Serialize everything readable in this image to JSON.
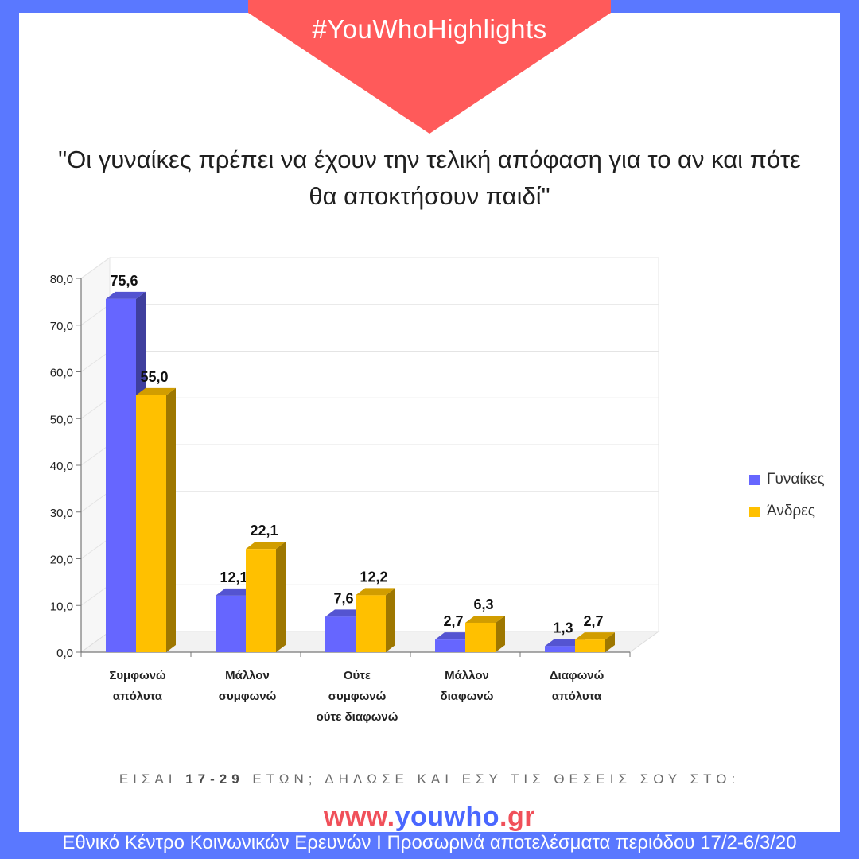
{
  "hashtag": "#YouWhoHighlights",
  "quote": "\"Οι γυναίκες πρέπει να έχουν την τελική απόφαση για το αν και πότε θα αποκτήσουν παιδί\"",
  "cta": {
    "part1": "ΕΙΣΑΙ ",
    "age": "17-29",
    "part2": " ΕΤΩΝ; ΔΗΛΩΣΕ ΚΑΙ ΕΣΥ ΤΙΣ ΘΕΣΕΙΣ ΣΟΥ ΣΤΟ:"
  },
  "site": {
    "prefix": "www.",
    "brand": "youwho",
    "suffix": ".gr"
  },
  "footer": "Εθνικό Κέντρο Κοινωνικών Ερευνών Ι Προσωρινά αποτελέσματα περιόδου 17/2-6/3/20",
  "colors": {
    "page_border": "#5a78ff",
    "banner": "#ff5a5a",
    "women": "#6666ff",
    "men": "#ffc000",
    "brand_red": "#f0505a",
    "brand_blue": "#4a67ff"
  },
  "chart_data": {
    "type": "bar",
    "style": "3d",
    "categories": [
      [
        "Συμφωνώ",
        "απόλυτα"
      ],
      [
        "Μάλλον",
        "συμφωνώ"
      ],
      [
        "Ούτε",
        "συμφωνώ",
        "ούτε διαφωνώ"
      ],
      [
        "Μάλλον",
        "διαφωνώ"
      ],
      [
        "Διαφωνώ",
        "απόλυτα"
      ]
    ],
    "series": [
      {
        "name": "Γυναίκες",
        "color": "#6666ff",
        "values": [
          75.6,
          12.1,
          7.6,
          2.7,
          1.3
        ],
        "labels": [
          "75,6",
          "12,1",
          "7,6",
          "2,7",
          "1,3"
        ]
      },
      {
        "name": "Άνδρες",
        "color": "#ffc000",
        "values": [
          55.0,
          22.1,
          12.2,
          6.3,
          2.7
        ],
        "labels": [
          "55,0",
          "22,1",
          "12,2",
          "6,3",
          "2,7"
        ]
      }
    ],
    "yticks": [
      "0,0",
      "10,0",
      "20,0",
      "30,0",
      "40,0",
      "50,0",
      "60,0",
      "70,0",
      "80,0"
    ],
    "ylim": [
      0,
      80
    ],
    "grid": true,
    "legend": "right"
  }
}
